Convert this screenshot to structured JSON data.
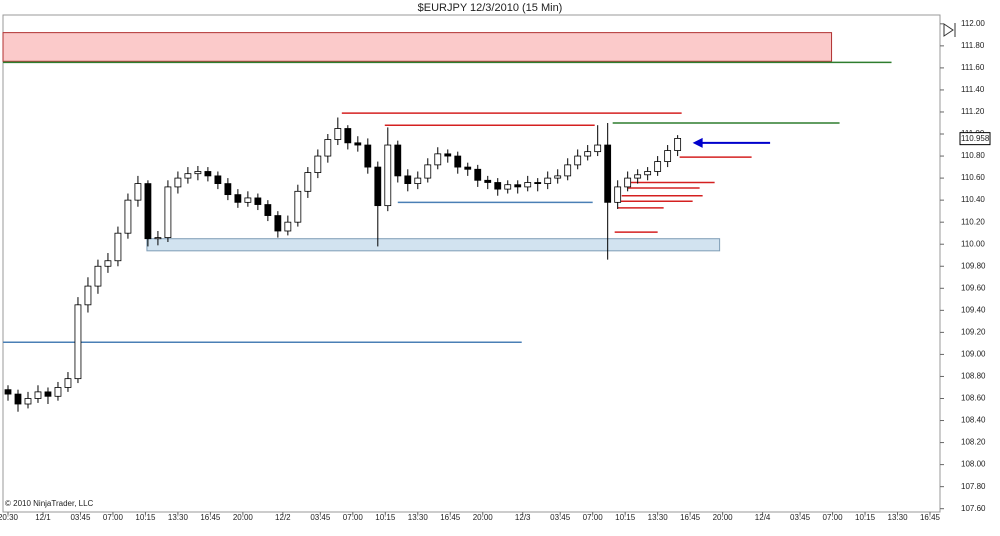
{
  "chart_data": {
    "type": "candlestick",
    "title": "$EURJPY  12/3/2010 (15 Min)",
    "copyright": "© 2010 NinjaTrader, LLC",
    "x": [
      0,
      4,
      8,
      12,
      16,
      20,
      24,
      28,
      32,
      36,
      40,
      44,
      48,
      52,
      56,
      60,
      64,
      68,
      72,
      76,
      80,
      84,
      88,
      92,
      96,
      100,
      104,
      108,
      112,
      116,
      120,
      124,
      128,
      132,
      136,
      140,
      144,
      148,
      152,
      156,
      160,
      164,
      168,
      172,
      176,
      180,
      184,
      188,
      192,
      196,
      200,
      204,
      208,
      212,
      216,
      220,
      224,
      228,
      232,
      236,
      240,
      244,
      248,
      252,
      256,
      260,
      264,
      268
    ],
    "ohlc": [
      [
        108.68,
        108.72,
        108.58,
        108.64
      ],
      [
        108.64,
        108.68,
        108.48,
        108.55
      ],
      [
        108.55,
        108.66,
        108.51,
        108.6
      ],
      [
        108.6,
        108.72,
        108.56,
        108.66
      ],
      [
        108.66,
        108.7,
        108.55,
        108.62
      ],
      [
        108.62,
        108.75,
        108.58,
        108.7
      ],
      [
        108.7,
        108.84,
        108.66,
        108.78
      ],
      [
        108.78,
        109.52,
        108.74,
        109.45
      ],
      [
        109.45,
        109.7,
        109.38,
        109.62
      ],
      [
        109.62,
        109.86,
        109.55,
        109.8
      ],
      [
        109.8,
        109.92,
        109.74,
        109.85
      ],
      [
        109.85,
        110.16,
        109.8,
        110.1
      ],
      [
        110.1,
        110.46,
        110.05,
        110.4
      ],
      [
        110.4,
        110.62,
        110.34,
        110.55
      ],
      [
        110.55,
        110.58,
        109.98,
        110.05
      ],
      [
        110.05,
        110.12,
        109.99,
        110.06
      ],
      [
        110.06,
        110.58,
        110.02,
        110.52
      ],
      [
        110.52,
        110.66,
        110.46,
        110.6
      ],
      [
        110.6,
        110.7,
        110.55,
        110.64
      ],
      [
        110.64,
        110.71,
        110.58,
        110.66
      ],
      [
        110.66,
        110.7,
        110.57,
        110.62
      ],
      [
        110.62,
        110.66,
        110.5,
        110.55
      ],
      [
        110.55,
        110.6,
        110.4,
        110.45
      ],
      [
        110.45,
        110.5,
        110.33,
        110.38
      ],
      [
        110.38,
        110.48,
        110.34,
        110.42
      ],
      [
        110.42,
        110.46,
        110.31,
        110.36
      ],
      [
        110.36,
        110.4,
        110.21,
        110.26
      ],
      [
        110.26,
        110.3,
        110.06,
        110.12
      ],
      [
        110.12,
        110.26,
        110.08,
        110.2
      ],
      [
        110.2,
        110.54,
        110.16,
        110.48
      ],
      [
        110.48,
        110.7,
        110.42,
        110.65
      ],
      [
        110.65,
        110.86,
        110.6,
        110.8
      ],
      [
        110.8,
        111.0,
        110.74,
        110.95
      ],
      [
        110.95,
        111.15,
        110.9,
        111.05
      ],
      [
        111.05,
        111.08,
        110.86,
        110.92
      ],
      [
        110.92,
        110.98,
        110.84,
        110.9
      ],
      [
        110.9,
        110.96,
        110.64,
        110.7
      ],
      [
        110.7,
        110.75,
        109.98,
        110.35
      ],
      [
        110.35,
        111.06,
        110.3,
        110.9
      ],
      [
        110.9,
        110.94,
        110.56,
        110.62
      ],
      [
        110.62,
        110.68,
        110.48,
        110.55
      ],
      [
        110.55,
        110.66,
        110.5,
        110.6
      ],
      [
        110.6,
        110.78,
        110.56,
        110.72
      ],
      [
        110.72,
        110.88,
        110.68,
        110.82
      ],
      [
        110.82,
        110.86,
        110.74,
        110.8
      ],
      [
        110.8,
        110.84,
        110.64,
        110.7
      ],
      [
        110.7,
        110.74,
        110.62,
        110.68
      ],
      [
        110.68,
        110.72,
        110.52,
        110.58
      ],
      [
        110.58,
        110.62,
        110.5,
        110.56
      ],
      [
        110.56,
        110.6,
        110.44,
        110.5
      ],
      [
        110.5,
        110.58,
        110.46,
        110.54
      ],
      [
        110.54,
        110.58,
        110.46,
        110.52
      ],
      [
        110.52,
        110.62,
        110.48,
        110.56
      ],
      [
        110.56,
        110.6,
        110.48,
        110.55
      ],
      [
        110.55,
        110.66,
        110.5,
        110.6
      ],
      [
        110.6,
        110.68,
        110.55,
        110.62
      ],
      [
        110.62,
        110.78,
        110.58,
        110.72
      ],
      [
        110.72,
        110.86,
        110.68,
        110.8
      ],
      [
        110.8,
        110.9,
        110.76,
        110.84
      ],
      [
        110.84,
        111.08,
        110.8,
        110.9
      ],
      [
        110.9,
        111.1,
        109.86,
        110.38
      ],
      [
        110.38,
        110.58,
        110.32,
        110.52
      ],
      [
        110.52,
        110.66,
        110.48,
        110.6
      ],
      [
        110.6,
        110.68,
        110.55,
        110.63
      ],
      [
        110.63,
        110.7,
        110.58,
        110.66
      ],
      [
        110.66,
        110.8,
        110.62,
        110.75
      ],
      [
        110.75,
        110.9,
        110.7,
        110.85
      ],
      [
        110.85,
        110.99,
        110.8,
        110.96
      ]
    ],
    "up_color": "#ffffff",
    "down_color": "#000000",
    "xlim": [
      -2,
      373
    ],
    "xticks": [
      {
        "value": 0,
        "label": "20:30"
      },
      {
        "value": 14,
        "label": "12/1"
      },
      {
        "value": 29,
        "label": "03:45"
      },
      {
        "value": 42,
        "label": "07:00"
      },
      {
        "value": 55,
        "label": "10:15"
      },
      {
        "value": 68,
        "label": "13:30"
      },
      {
        "value": 81,
        "label": "16:45"
      },
      {
        "value": 94,
        "label": "20:00"
      },
      {
        "value": 110,
        "label": "12/2"
      },
      {
        "value": 125,
        "label": "03:45"
      },
      {
        "value": 138,
        "label": "07:00"
      },
      {
        "value": 151,
        "label": "10:15"
      },
      {
        "value": 164,
        "label": "13:30"
      },
      {
        "value": 177,
        "label": "16:45"
      },
      {
        "value": 190,
        "label": "20:00"
      },
      {
        "value": 206,
        "label": "12/3"
      },
      {
        "value": 221,
        "label": "03:45"
      },
      {
        "value": 234,
        "label": "07:00"
      },
      {
        "value": 247,
        "label": "10:15"
      },
      {
        "value": 260,
        "label": "13:30"
      },
      {
        "value": 273,
        "label": "16:45"
      },
      {
        "value": 286,
        "label": "20:00"
      },
      {
        "value": 302,
        "label": "12/4"
      },
      {
        "value": 317,
        "label": "03:45"
      },
      {
        "value": 330,
        "label": "07:00"
      },
      {
        "value": 343,
        "label": "10:15"
      },
      {
        "value": 356,
        "label": "13:30"
      },
      {
        "value": 369,
        "label": "16:45"
      }
    ],
    "ylim": [
      107.57,
      112.08
    ],
    "yticks": [
      {
        "value": 107.6,
        "label": "107.60"
      },
      {
        "value": 107.8,
        "label": "107.80"
      },
      {
        "value": 108,
        "label": "108.00"
      },
      {
        "value": 108.2,
        "label": "108.20"
      },
      {
        "value": 108.4,
        "label": "108.40"
      },
      {
        "value": 108.6,
        "label": "108.60"
      },
      {
        "value": 108.8,
        "label": "108.80"
      },
      {
        "value": 109,
        "label": "109.00"
      },
      {
        "value": 109.2,
        "label": "109.20"
      },
      {
        "value": 109.4,
        "label": "109.40"
      },
      {
        "value": 109.6,
        "label": "109.60"
      },
      {
        "value": 109.8,
        "label": "109.80"
      },
      {
        "value": 110,
        "label": "110.00"
      },
      {
        "value": 110.2,
        "label": "110.20"
      },
      {
        "value": 110.4,
        "label": "110.40"
      },
      {
        "value": 110.6,
        "label": "110.60"
      },
      {
        "value": 110.8,
        "label": "110.80"
      },
      {
        "value": 111,
        "label": "111.00"
      },
      {
        "value": 111.2,
        "label": "111.20"
      },
      {
        "value": 111.4,
        "label": "111.40"
      },
      {
        "value": 111.6,
        "label": "111.60"
      },
      {
        "value": 111.8,
        "label": "111.80"
      },
      {
        "value": 112,
        "label": "112.00"
      }
    ],
    "last_price": 110.958,
    "zones": [
      {
        "top": 111.92,
        "bottom": 111.66,
        "from": -2,
        "to": 329.6,
        "fill": "#fbcaca",
        "stroke": "#b03030"
      },
      {
        "top": 110.05,
        "bottom": 109.94,
        "from": 55.6,
        "to": 284.8,
        "fill": "#d2e3f0",
        "stroke": "#7f9db6"
      }
    ],
    "levels": [
      {
        "price": 111.65,
        "from": -2,
        "to": 353.6,
        "color": "#2e7d2e"
      },
      {
        "price": 109.11,
        "from": -2,
        "to": 205.6,
        "color": "#4a7fb5"
      },
      {
        "price": 110.38,
        "from": 156,
        "to": 234,
        "color": "#4a7fb5"
      },
      {
        "price": 111.19,
        "from": 133.6,
        "to": 269.6,
        "color": "#d42020"
      },
      {
        "price": 111.08,
        "from": 150.8,
        "to": 234.8,
        "color": "#d42020"
      },
      {
        "price": 111.1,
        "from": 242,
        "to": 332.8,
        "color": "#2e7d2e"
      },
      {
        "price": 110.79,
        "from": 268.8,
        "to": 297.6,
        "color": "#d42020"
      },
      {
        "price": 110.56,
        "from": 246.8,
        "to": 282.8,
        "color": "#d42020"
      },
      {
        "price": 110.51,
        "from": 248,
        "to": 276.8,
        "color": "#d42020"
      },
      {
        "price": 110.44,
        "from": 245.6,
        "to": 278,
        "color": "#d42020"
      },
      {
        "price": 110.39,
        "from": 244.8,
        "to": 274,
        "color": "#d42020"
      },
      {
        "price": 110.33,
        "from": 244,
        "to": 262.4,
        "color": "#d42020"
      },
      {
        "price": 110.11,
        "from": 242.8,
        "to": 260,
        "color": "#d42020"
      }
    ],
    "arrow": {
      "price": 110.92,
      "from": 305,
      "to": 274,
      "color": "#0000cc"
    }
  }
}
